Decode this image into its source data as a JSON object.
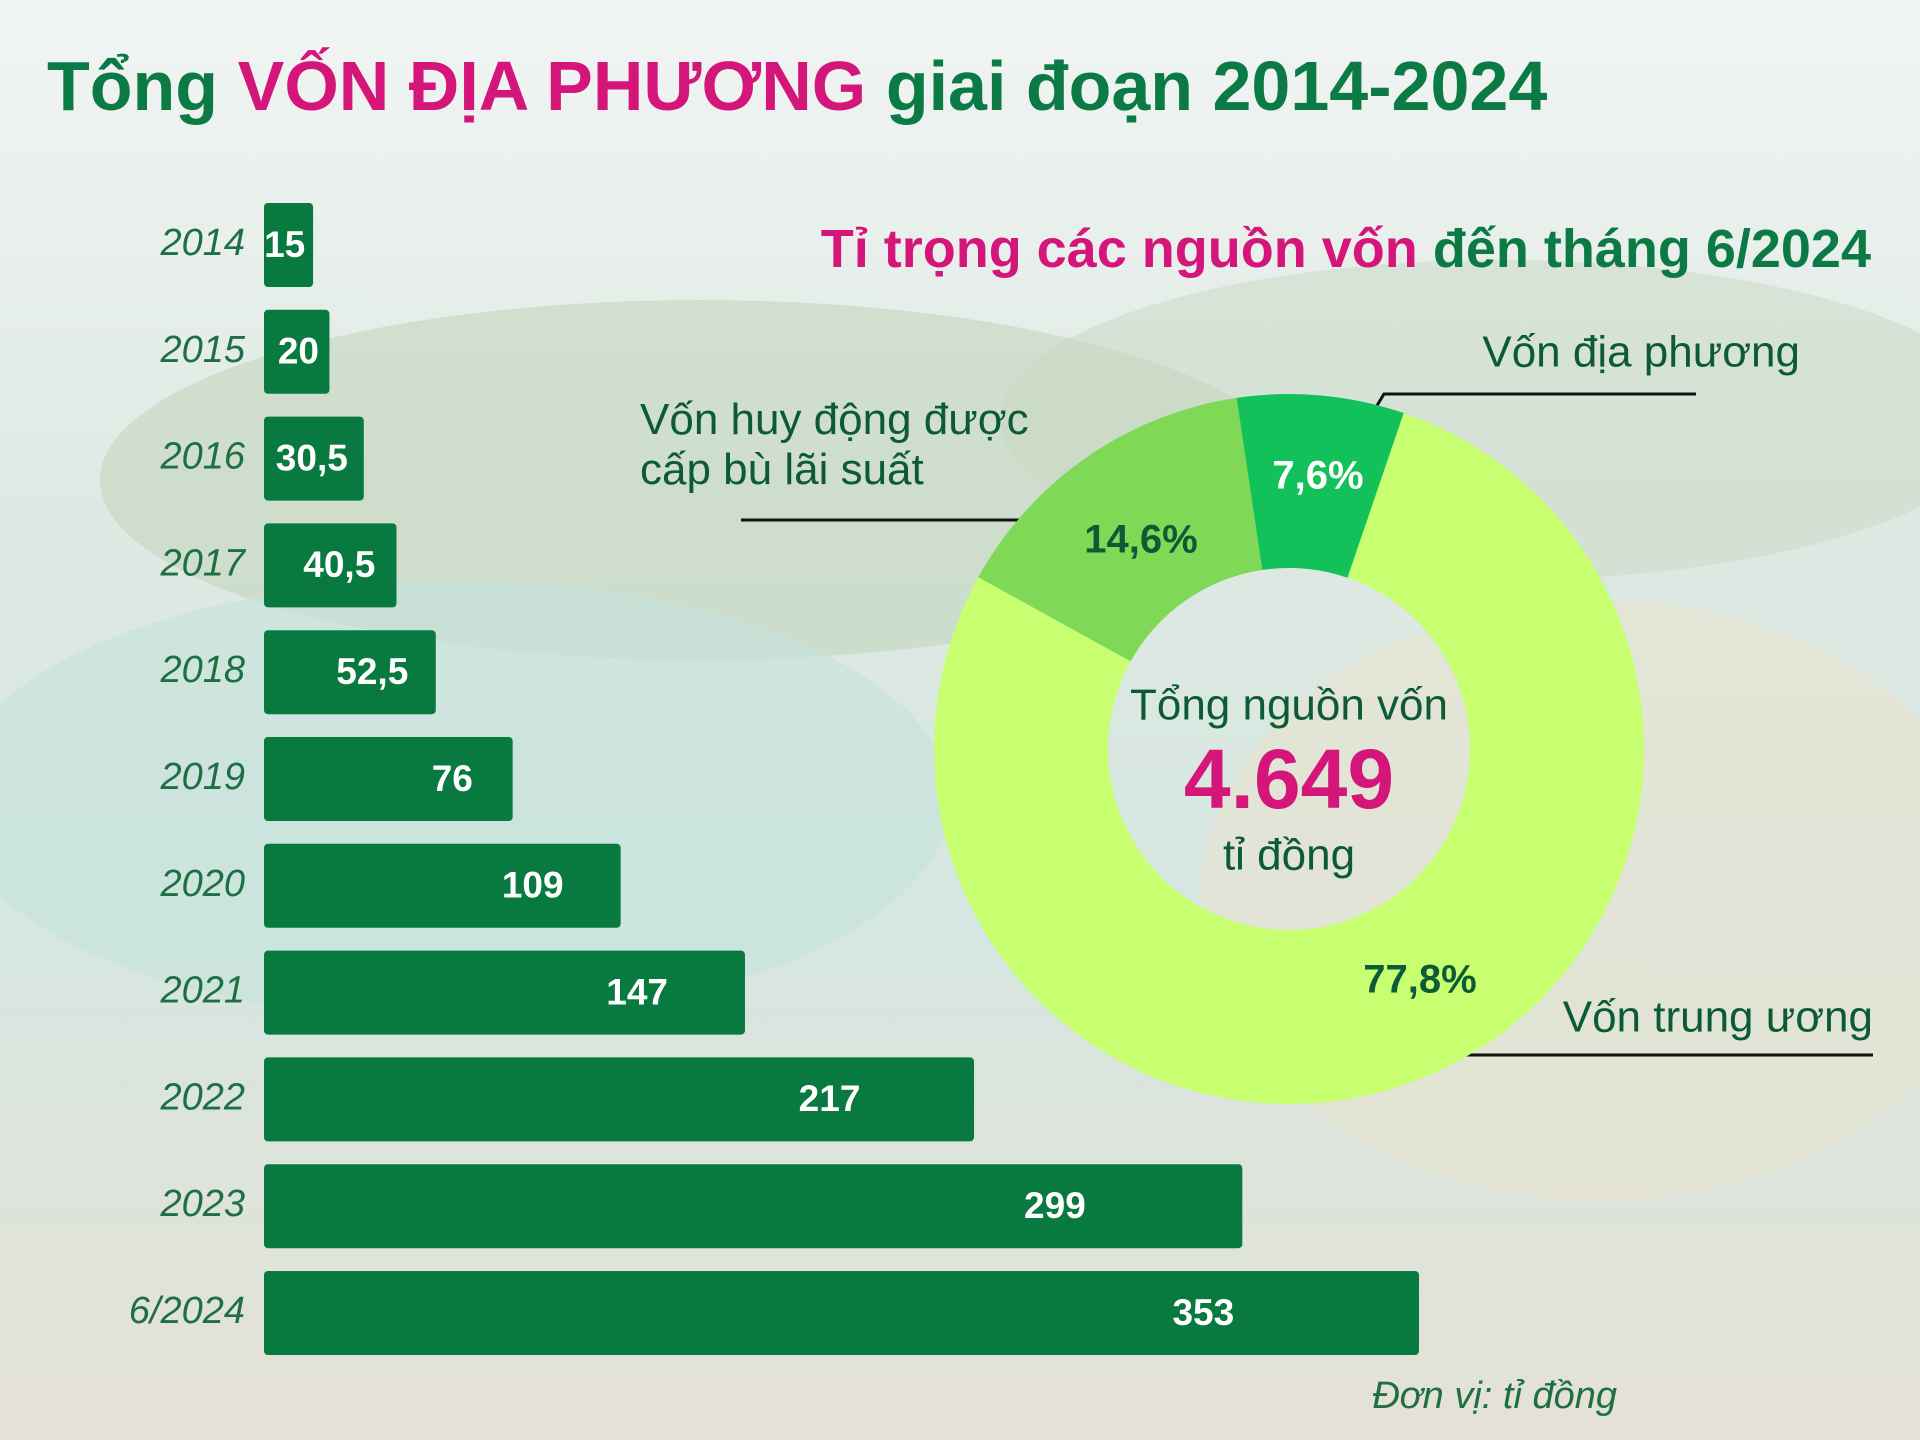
{
  "chart_data": [
    {
      "type": "bar",
      "title": [
        "Tổng",
        "VỐN ĐỊA PHƯƠNG",
        "giai đoạn 2014-2024"
      ],
      "title_colors": [
        "#0b7a45",
        "#d4157a",
        "#0b7a45"
      ],
      "categories": [
        "2014",
        "2015",
        "2016",
        "2017",
        "2018",
        "2019",
        "2020",
        "2021",
        "2022",
        "2023",
        "6/2024"
      ],
      "values": [
        15,
        20,
        30.5,
        40.5,
        52.5,
        76,
        109,
        147,
        217,
        299,
        353
      ],
      "value_labels": [
        "15",
        "20",
        "30,5",
        "40,5",
        "52,5",
        "76",
        "109",
        "147",
        "217",
        "299",
        "353"
      ],
      "color": "#08793f",
      "unit": "Đơn vị: tỉ đồng"
    },
    {
      "type": "donut",
      "title": [
        "Tỉ trọng các nguồn vốn",
        "đến tháng 6/2024"
      ],
      "title_colors": [
        "#d4157a",
        "#0b7a45"
      ],
      "categories": [
        "Vốn địa phương",
        "Vốn trung ương",
        "Vốn huy động được cấp bù lãi suất"
      ],
      "values": [
        7.6,
        77.8,
        14.6
      ],
      "value_labels": [
        "7,6%",
        "77,8%",
        "14,6%"
      ],
      "colors": [
        "#12c15a",
        "#c8ff70",
        "#7fd957"
      ],
      "center_title": "Tổng nguồn vốn",
      "center_value": "4.649",
      "center_unit": "tỉ đồng"
    }
  ]
}
